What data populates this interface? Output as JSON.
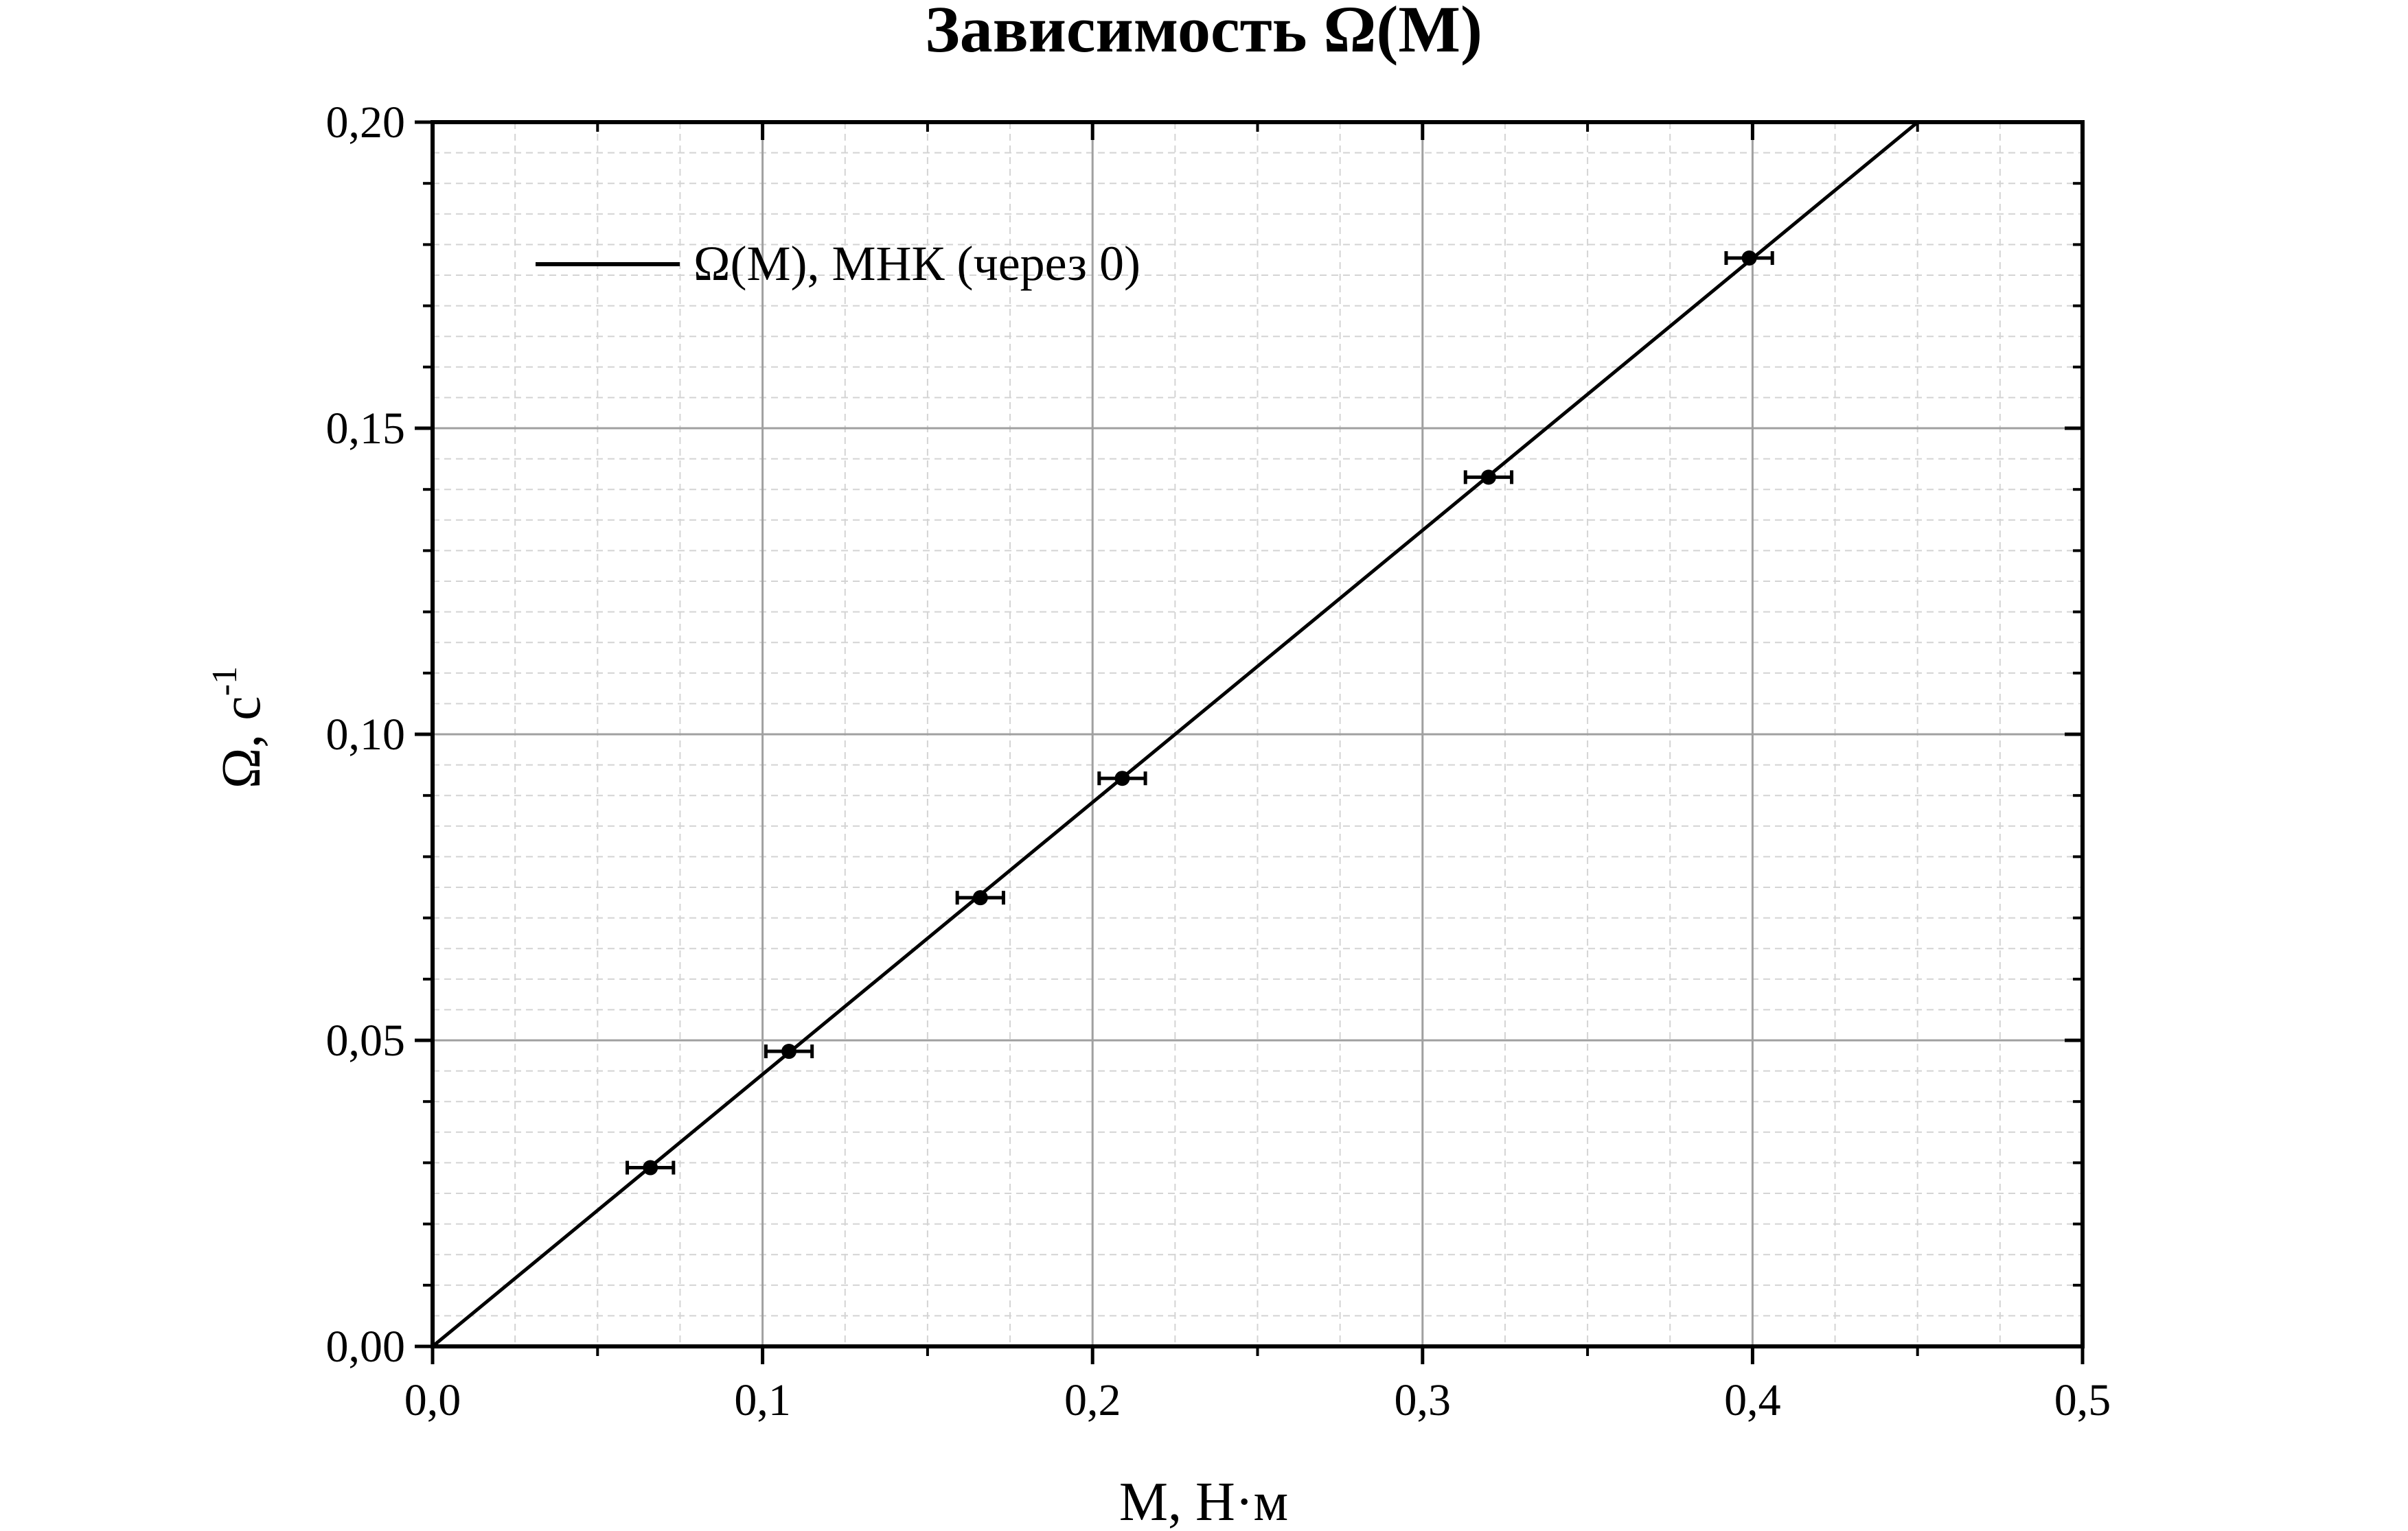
{
  "chart_data": {
    "type": "scatter",
    "title": "Зависимость Ω(M)",
    "xlabel": "M, Н·м",
    "ylabel": "Ω, с",
    "ylabel_superscript": "-1",
    "xlim": [
      0,
      0.5
    ],
    "ylim": [
      0,
      0.2
    ],
    "x_ticks": [
      "0,0",
      "0,1",
      "0,2",
      "0,3",
      "0,4",
      "0,5"
    ],
    "x_tick_values": [
      0,
      0.1,
      0.2,
      0.3,
      0.4,
      0.5
    ],
    "y_ticks": [
      "0,00",
      "0,05",
      "0,10",
      "0,15",
      "0,20"
    ],
    "y_tick_values": [
      0,
      0.05,
      0.1,
      0.15,
      0.2
    ],
    "grid": true,
    "legend": {
      "position": "top-left",
      "entries": [
        "Ω(M), МНК (через 0)"
      ]
    },
    "points": {
      "x": [
        0.066,
        0.108,
        0.166,
        0.209,
        0.32,
        0.399
      ],
      "y": [
        0.0292,
        0.0482,
        0.0733,
        0.0928,
        0.142,
        0.1778
      ],
      "x_err": [
        0.007,
        0.007,
        0.007,
        0.007,
        0.007,
        0.007
      ]
    },
    "fit_line": {
      "name": "Ω(M), МНК (через 0)",
      "intercept": 0,
      "slope": 0.4444,
      "x_range": [
        0,
        0.45
      ]
    },
    "colors": {
      "line": "#000000",
      "grid_major": "#a0a0a0",
      "grid_minor": "#d4d4d4",
      "axes": "#000000"
    }
  }
}
